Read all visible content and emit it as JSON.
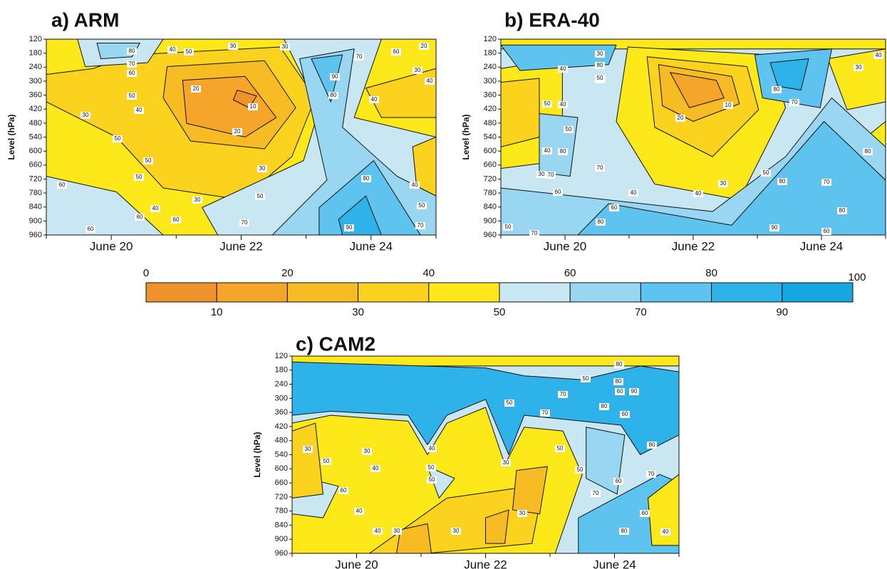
{
  "chart_data": [
    {
      "type": "contour",
      "title": "a) ARM",
      "ylabel": "Level (hPa)",
      "ylim": [
        960,
        120
      ],
      "yticks": [
        120,
        180,
        240,
        300,
        360,
        420,
        480,
        540,
        600,
        660,
        720,
        780,
        840,
        900,
        960
      ],
      "xlim": [
        19,
        25
      ],
      "xticks": [
        {
          "value": 20,
          "label": "June 20"
        },
        {
          "value": 22,
          "label": "June 22"
        },
        {
          "value": 24,
          "label": "June 24"
        }
      ],
      "contour_labels": [
        80,
        70,
        60,
        40,
        50,
        30,
        30,
        20,
        10,
        20,
        50,
        40,
        30,
        50,
        50,
        50,
        30,
        30,
        40,
        60,
        60,
        60,
        60,
        50,
        70,
        90,
        80,
        90,
        80,
        70,
        60,
        30,
        40,
        40,
        50,
        70,
        40,
        20
      ]
    },
    {
      "type": "contour",
      "title": "b) ERA-40",
      "ylabel": "Level (hPa)",
      "ylim": [
        960,
        120
      ],
      "yticks": [
        120,
        180,
        240,
        300,
        360,
        420,
        480,
        540,
        600,
        660,
        720,
        780,
        840,
        900,
        960
      ],
      "xlim": [
        19,
        25
      ],
      "xticks": [
        {
          "value": 20,
          "label": "June 20"
        },
        {
          "value": 22,
          "label": "June 22"
        },
        {
          "value": 24,
          "label": "June 24"
        }
      ],
      "contour_labels": [
        30,
        80,
        50,
        40,
        50,
        40,
        50,
        40,
        50,
        80,
        70,
        70,
        60,
        60,
        40,
        30,
        20,
        10,
        40,
        30,
        80,
        70,
        50,
        80,
        70,
        80,
        90,
        80,
        60,
        50,
        70,
        80,
        40,
        30
      ]
    },
    {
      "type": "contour",
      "title": "c) CAM2",
      "ylabel": "Level (hPa)",
      "ylim": [
        960,
        120
      ],
      "yticks": [
        120,
        180,
        240,
        300,
        360,
        420,
        480,
        540,
        600,
        660,
        720,
        780,
        840,
        900,
        960
      ],
      "xlim": [
        19,
        25
      ],
      "xticks": [
        {
          "value": 20,
          "label": "June 20"
        },
        {
          "value": 22,
          "label": "June 22"
        },
        {
          "value": 24,
          "label": "June 24"
        }
      ],
      "contour_labels": [
        50,
        80,
        60,
        90,
        50,
        70,
        70,
        80,
        60,
        30,
        50,
        30,
        40,
        40,
        50,
        50,
        30,
        50,
        60,
        50,
        40,
        40,
        30,
        30,
        30,
        80,
        70,
        60,
        70,
        60,
        80,
        80,
        40
      ]
    },
    {
      "type": "colorbar",
      "lim": [
        0,
        100
      ],
      "ticks_top": [
        0,
        20,
        40,
        60,
        80,
        100
      ],
      "ticks_bottom": [
        10,
        30,
        50,
        70,
        90
      ],
      "colors": [
        "#f0922c",
        "#f4a52a",
        "#f7bb23",
        "#fbd31e",
        "#fde81a",
        "#c9e7f3",
        "#99d6f2",
        "#5ec3ee",
        "#2db2ea",
        "#16a7e3"
      ]
    }
  ]
}
